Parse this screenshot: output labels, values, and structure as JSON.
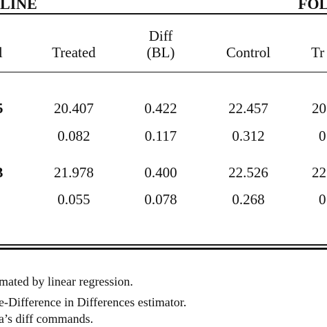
{
  "header": {
    "left_group": "LINE",
    "right_group": "FOL"
  },
  "columns": {
    "partial_left": "l",
    "treated": "Treated",
    "diff_top": "Diff",
    "diff_bottom": "(BL)",
    "control": "Control",
    "partial_right": "Tr"
  },
  "rows": [
    {
      "label": "5",
      "estimate": {
        "treated": "20.407",
        "diff": "0.422",
        "control": "22.457",
        "partial": "20"
      },
      "se": {
        "treated": "0.082",
        "diff": "0.117",
        "control": "0.312",
        "partial": "0"
      }
    },
    {
      "label": "3",
      "estimate": {
        "treated": "21.978",
        "diff": "0.400",
        "control": "22.526",
        "partial": "22"
      },
      "se": {
        "treated": "0.055",
        "diff": "0.078",
        "control": "0.268",
        "partial": "0"
      }
    }
  ],
  "notes": [
    "mated by linear regression.",
    "e-Difference in Differences estimator.",
    "a’s diff commands."
  ]
}
